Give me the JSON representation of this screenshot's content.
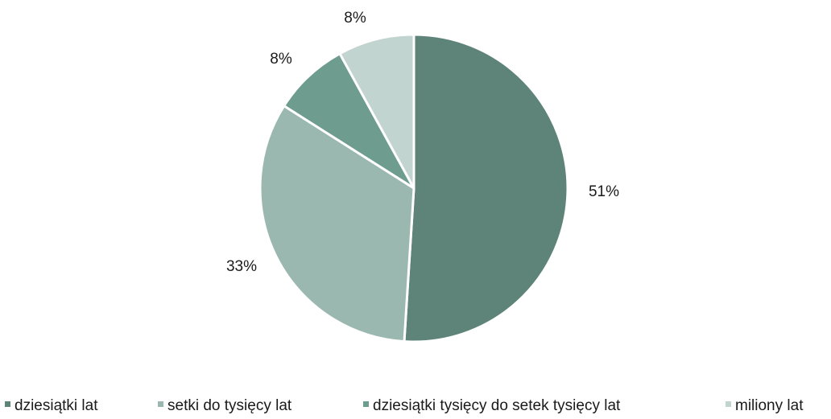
{
  "chart_data": {
    "type": "pie",
    "categories": [
      "dziesiątki lat",
      "setki do tysięcy lat",
      "dziesiątki tysięcy do setek tysięcy lat",
      "miliony lat"
    ],
    "values": [
      51,
      33,
      8,
      8
    ],
    "value_labels": [
      "51%",
      "33%",
      "8%",
      "8%"
    ],
    "colors": [
      "#5e8479",
      "#9ab8af",
      "#6e9d90",
      "#c2d4cf"
    ],
    "legend_position": "bottom",
    "start_angle": "12 o'clock",
    "direction": "clockwise"
  }
}
